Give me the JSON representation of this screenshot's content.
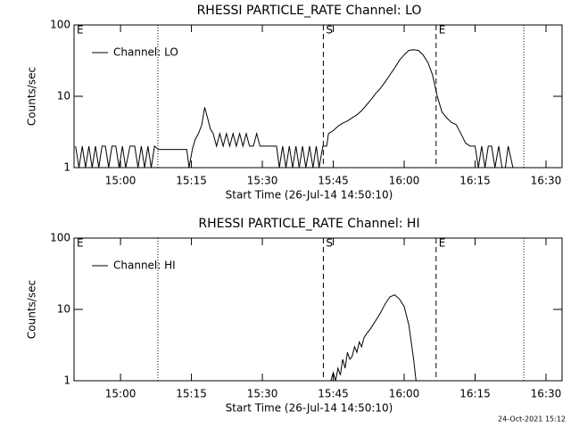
{
  "chart_data": [
    {
      "type": "line",
      "title": "RHESSI PARTICLE_RATE Channel: LO",
      "xlabel": "Start Time (26-Jul-14 14:50:10)",
      "ylabel": "Counts/sec",
      "log_y": true,
      "ylim": [
        1,
        100
      ],
      "yticks": [
        1,
        10,
        100
      ],
      "xlim": [
        890.17,
        993.4
      ],
      "xticks": [
        {
          "value": 900,
          "label": "15:00"
        },
        {
          "value": 915,
          "label": "15:15"
        },
        {
          "value": 930,
          "label": "15:30"
        },
        {
          "value": 945,
          "label": "15:45"
        },
        {
          "value": 960,
          "label": "16:00"
        },
        {
          "value": 975,
          "label": "16:15"
        },
        {
          "value": 990,
          "label": "16:30"
        }
      ],
      "legend": "top-left",
      "markers": [
        {
          "x": 890.17,
          "label": "E",
          "style": "none"
        },
        {
          "x": 907.9,
          "style": "dotted"
        },
        {
          "x": 942.9,
          "label": "S",
          "style": "dashed"
        },
        {
          "x": 966.75,
          "label": "E",
          "style": "dashed"
        },
        {
          "x": 985.3,
          "style": "dotted"
        }
      ],
      "series": [
        {
          "name": "Channel: LO",
          "color": "#000000",
          "x": [
            890.5,
            891.2,
            891.9,
            892.6,
            893.3,
            894,
            894.7,
            895.4,
            896.1,
            896.8,
            897.5,
            898.2,
            899,
            899.7,
            900.4,
            901.1,
            902,
            903,
            903.7,
            904.4,
            905.1,
            905.8,
            906.5,
            907.2,
            908,
            914,
            914.5,
            915.2,
            915.8,
            916.5,
            917.2,
            917.8,
            918.4,
            919,
            919.6,
            920.3,
            921,
            921.7,
            922.4,
            923.1,
            923.8,
            924.5,
            925.2,
            925.9,
            926.6,
            927.3,
            928.1,
            928.8,
            929.5,
            933,
            933.6,
            934.3,
            935,
            935.7,
            936.4,
            937.1,
            937.8,
            938.5,
            939.2,
            940,
            940.7,
            941.4,
            942,
            942.8,
            943.6,
            944,
            945,
            946,
            947,
            948,
            949,
            950,
            951,
            952,
            953,
            954,
            955,
            956,
            957,
            958,
            959,
            960,
            961,
            962,
            963,
            964,
            965,
            966,
            967,
            968,
            969,
            970,
            971,
            972,
            973,
            974,
            975,
            975.7,
            976.4,
            977.1,
            977.8,
            978.5,
            979.2,
            980,
            980.7,
            981.4,
            982,
            983,
            990.5
          ],
          "values": [
            2,
            1,
            2,
            1,
            2,
            1,
            2,
            1,
            2,
            2,
            1,
            2,
            2,
            1,
            2,
            1,
            2,
            2,
            1,
            2,
            1,
            2,
            1,
            2,
            1.8,
            1.8,
            1,
            1.8,
            2.5,
            3,
            4,
            7,
            5,
            3.5,
            3,
            2,
            3,
            2,
            3,
            2,
            3,
            2,
            3,
            2,
            3,
            2,
            2,
            3,
            2,
            2,
            1,
            2,
            1,
            2,
            1,
            2,
            1,
            2,
            1,
            2,
            1,
            2,
            1,
            2,
            2,
            3,
            3.3,
            3.8,
            4.2,
            4.5,
            5,
            5.5,
            6.3,
            7.5,
            9,
            11,
            13,
            16,
            20,
            25,
            32,
            38,
            44,
            45,
            44,
            38,
            30,
            20,
            10,
            6,
            5,
            4.3,
            4,
            3,
            2.2,
            2,
            2,
            1,
            2,
            1,
            2,
            2,
            1,
            2,
            1,
            1,
            2,
            1,
            1
          ]
        }
      ]
    },
    {
      "type": "line",
      "title": "RHESSI PARTICLE_RATE Channel: HI",
      "xlabel": "Start Time (26-Jul-14 14:50:10)",
      "ylabel": "Counts/sec",
      "log_y": true,
      "ylim": [
        1,
        100
      ],
      "yticks": [
        1,
        10,
        100
      ],
      "xlim": [
        890.17,
        993.4
      ],
      "xticks": [
        {
          "value": 900,
          "label": "15:00"
        },
        {
          "value": 915,
          "label": "15:15"
        },
        {
          "value": 930,
          "label": "15:30"
        },
        {
          "value": 945,
          "label": "15:45"
        },
        {
          "value": 960,
          "label": "16:00"
        },
        {
          "value": 975,
          "label": "16:15"
        },
        {
          "value": 990,
          "label": "16:30"
        }
      ],
      "legend": "top-left",
      "markers": [
        {
          "x": 890.17,
          "label": "E",
          "style": "none"
        },
        {
          "x": 907.9,
          "style": "dotted"
        },
        {
          "x": 942.9,
          "label": "S",
          "style": "dashed"
        },
        {
          "x": 966.75,
          "label": "E",
          "style": "dashed"
        },
        {
          "x": 985.3,
          "style": "dotted"
        }
      ],
      "series": [
        {
          "name": "Channel: HI",
          "color": "#000000",
          "x": [
            944.5,
            945,
            945.5,
            946,
            946.5,
            947,
            947.5,
            948,
            948.5,
            949,
            949.5,
            950,
            950.5,
            951,
            951.5,
            952,
            953,
            954,
            955,
            956,
            957,
            958,
            959,
            960,
            961,
            962,
            962.5
          ],
          "values": [
            1,
            1.3,
            1,
            1.5,
            1.2,
            2,
            1.5,
            2.5,
            2,
            2.2,
            3,
            2.5,
            3.5,
            3,
            4,
            4.5,
            5.5,
            7,
            9,
            12,
            15,
            16,
            14,
            11,
            6,
            2,
            1
          ]
        }
      ]
    }
  ],
  "footer": "24-Oct-2021 15:12"
}
